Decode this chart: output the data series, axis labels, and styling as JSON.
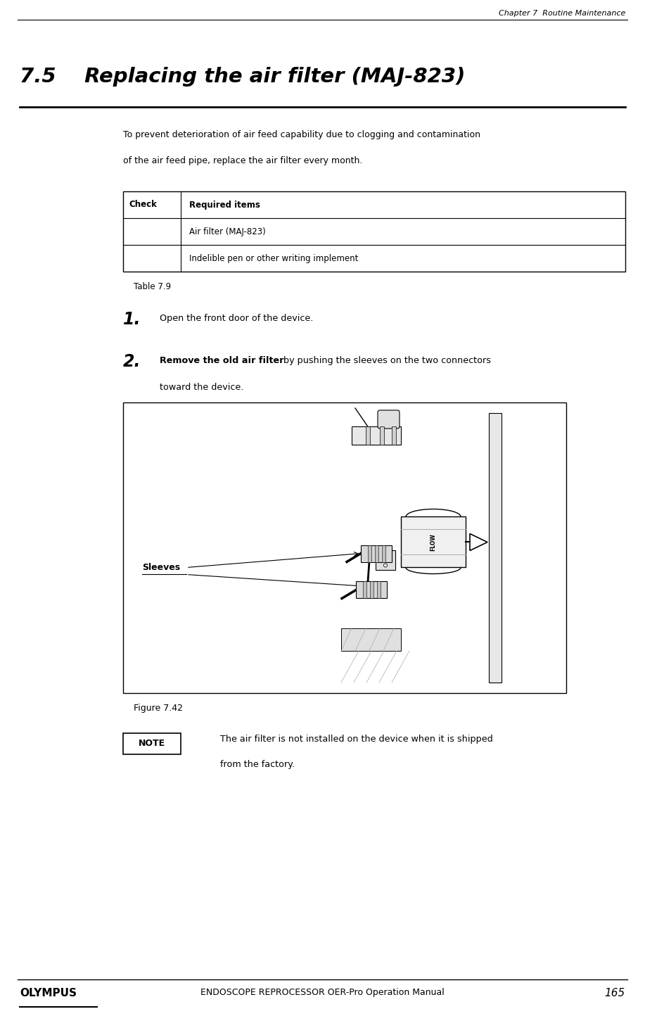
{
  "page_width": 9.17,
  "page_height": 14.34,
  "bg_color": "#ffffff",
  "header_text": "Chapter 7  Routine Maintenance",
  "section_number": "7.5",
  "section_title": "Replacing the air filter (MAJ-823)",
  "intro_line1": "To prevent deterioration of air feed capability due to clogging and contamination",
  "intro_line2": "of the air feed pipe, replace the air filter every month.",
  "table_header_col1": "Check",
  "table_header_col2": "Required items",
  "table_row1": "Air filter (MAJ-823)",
  "table_row2": "Indelible pen or other writing implement",
  "table_caption": "Table 7.9",
  "step1_num": "1.",
  "step1_text": "Open the front door of the device.",
  "step2_num": "2.",
  "step2_bold": "Remove the old air filter",
  "step2_rest": " by pushing the sleeves on the two connectors",
  "step2_cont": "toward the device.",
  "figure_caption": "Figure 7.42",
  "sleeves_label": "Sleeves",
  "note_label": "NOTE",
  "note_line1": "The air filter is not installed on the device when it is shipped",
  "note_line2": "from the factory.",
  "footer_brand": "OLYMPUS",
  "footer_text": "ENDOSCOPE REPROCESSOR OER-Pro Operation Manual",
  "footer_page": "165",
  "black": "#000000",
  "white": "#ffffff",
  "light_gray": "#d8d8d8",
  "mid_gray": "#aaaaaa",
  "dark_gray": "#555555"
}
